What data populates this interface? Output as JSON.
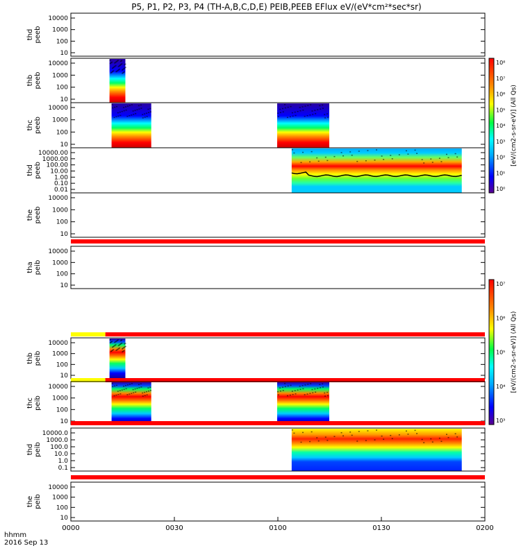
{
  "title": "P5, P1, P2, P3, P4 (TH-A,B,C,D,E) PEIB,PEEB EFlux eV/(eV*cm²*sec*sr)",
  "footer": {
    "axis_name": "hhmm",
    "date": "2016 Sep 13"
  },
  "colorbars": [
    {
      "label": "[eV/(cm2-s-sr-eV)] (All Qs)",
      "ticks": [
        "10⁸",
        "10⁷",
        "10⁶",
        "10⁵",
        "10⁴",
        "10³",
        "10²",
        "10¹",
        "10⁰"
      ]
    },
    {
      "label": "[eV/(cm2-s-sr-eV)] (All Qs)",
      "ticks": [
        "10⁷",
        "10⁶",
        "10⁵",
        "10⁴",
        "10³"
      ]
    }
  ],
  "chart_data": {
    "type": "heatmap",
    "x_axis": {
      "label": "hhmm",
      "range_minutes": [
        0,
        120
      ],
      "ticks": [
        {
          "label": "0000",
          "minutes": 0
        },
        {
          "label": "0030",
          "minutes": 30
        },
        {
          "label": "0100",
          "minutes": 60
        },
        {
          "label": "0130",
          "minutes": 90
        },
        {
          "label": "0200",
          "minutes": 120
        }
      ]
    },
    "panels": [
      {
        "probe": "thd",
        "product": "peeb",
        "ylabels": [
          "10000",
          "1000",
          "100",
          "10"
        ],
        "scale": "log",
        "blocks": [],
        "bars": []
      },
      {
        "probe": "thb",
        "product": "peeb",
        "ylabels": [
          "10000",
          "1000",
          "100",
          "10"
        ],
        "scale": "log",
        "blocks": [
          {
            "start": 11.2,
            "end": 15.8,
            "style": "electron"
          }
        ],
        "bars": []
      },
      {
        "probe": "thc",
        "product": "peeb",
        "ylabels": [
          "10000",
          "1000",
          "100",
          "10"
        ],
        "scale": "log",
        "blocks": [
          {
            "start": 11.8,
            "end": 23.3,
            "style": "electron"
          },
          {
            "start": 59.8,
            "end": 74.9,
            "style": "electron"
          }
        ],
        "bars": []
      },
      {
        "probe": "thd",
        "product": "peeb",
        "ylabels": [
          "10000.00",
          "1000.00",
          "100.00",
          "10.00",
          "1.00",
          "0.10",
          "0.01"
        ],
        "scale": "log",
        "blocks": [
          {
            "start": 64.0,
            "end": 113.3,
            "style": "electron-d"
          }
        ],
        "bars": []
      },
      {
        "probe": "the",
        "product": "peeb",
        "ylabels": [
          "10000",
          "1000",
          "100",
          "10"
        ],
        "scale": "log",
        "blocks": [],
        "bars": [
          {
            "start": 0,
            "end": 120,
            "color": "#ff0000"
          }
        ]
      },
      {
        "probe": "tha",
        "product": "peib",
        "ylabels": [
          "10000",
          "1000",
          "100",
          "10"
        ],
        "scale": "log",
        "blocks": [],
        "bars": [
          {
            "start": 0,
            "end": 10.0,
            "color": "#ffff00"
          },
          {
            "start": 10.0,
            "end": 120,
            "color": "#ff0000"
          }
        ]
      },
      {
        "probe": "thb",
        "product": "peib",
        "ylabels": [
          "10000",
          "1000",
          "100",
          "10"
        ],
        "scale": "log",
        "blocks": [
          {
            "start": 11.2,
            "end": 15.8,
            "style": "ion"
          }
        ],
        "bars": [
          {
            "start": 0,
            "end": 10.0,
            "color": "#ffff00"
          },
          {
            "start": 10.0,
            "end": 120,
            "color": "#ff0000"
          }
        ]
      },
      {
        "probe": "thc",
        "product": "peib",
        "ylabels": [
          "10000",
          "1000",
          "100",
          "10"
        ],
        "scale": "log",
        "blocks": [
          {
            "start": 11.8,
            "end": 23.3,
            "style": "ion"
          },
          {
            "start": 59.8,
            "end": 74.9,
            "style": "ion"
          }
        ],
        "bars": [
          {
            "start": 0,
            "end": 120,
            "color": "#ff0000"
          }
        ]
      },
      {
        "probe": "thd",
        "product": "peib",
        "ylabels": [
          "10000.0",
          "1000.0",
          "100.0",
          "10.0",
          "1.0",
          "0.1"
        ],
        "scale": "log",
        "blocks": [
          {
            "start": 64.0,
            "end": 113.3,
            "style": "ion-d"
          }
        ],
        "bars": [
          {
            "start": 0,
            "end": 120,
            "color": "#ff0000"
          }
        ]
      },
      {
        "probe": "the",
        "product": "peib",
        "ylabels": [
          "10000",
          "1000",
          "100",
          "10"
        ],
        "scale": "log",
        "blocks": [],
        "bars": []
      }
    ]
  }
}
